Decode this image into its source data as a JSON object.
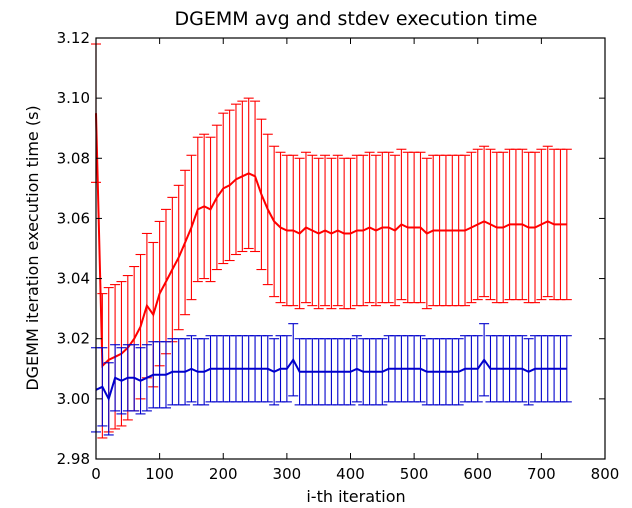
{
  "chart_data": {
    "type": "line",
    "title": "DGEMM  avg and stdev execution time",
    "xlabel": "i-th iteration",
    "ylabel": "DGEMM iteration execution time (s)",
    "xlim": [
      0,
      800
    ],
    "ylim": [
      2.98,
      3.12
    ],
    "x_ticks": [
      "0",
      "100",
      "200",
      "300",
      "400",
      "500",
      "600",
      "700",
      "800"
    ],
    "y_ticks": [
      "2.98",
      "3.00",
      "3.02",
      "3.04",
      "3.06",
      "3.08",
      "3.10",
      "3.12"
    ],
    "grid": false,
    "legend": "none",
    "error_bars": true,
    "series": [
      {
        "color": "#ff0000",
        "x": [
          0,
          10,
          20,
          30,
          40,
          50,
          60,
          70,
          80,
          90,
          100,
          110,
          120,
          130,
          140,
          150,
          160,
          170,
          180,
          190,
          200,
          210,
          220,
          230,
          240,
          250,
          260,
          270,
          280,
          290,
          300,
          310,
          320,
          330,
          340,
          350,
          360,
          370,
          380,
          390,
          400,
          410,
          420,
          430,
          440,
          450,
          460,
          470,
          480,
          490,
          500,
          510,
          520,
          530,
          540,
          550,
          560,
          570,
          580,
          590,
          600,
          610,
          620,
          630,
          640,
          650,
          660,
          670,
          680,
          690,
          700,
          710,
          720,
          730,
          740
        ],
        "mean": [
          3.095,
          3.011,
          3.013,
          3.014,
          3.015,
          3.017,
          3.02,
          3.024,
          3.031,
          3.028,
          3.035,
          3.039,
          3.043,
          3.047,
          3.052,
          3.057,
          3.063,
          3.064,
          3.063,
          3.067,
          3.07,
          3.071,
          3.073,
          3.074,
          3.075,
          3.074,
          3.068,
          3.063,
          3.059,
          3.057,
          3.056,
          3.056,
          3.055,
          3.057,
          3.056,
          3.055,
          3.056,
          3.055,
          3.056,
          3.055,
          3.055,
          3.056,
          3.056,
          3.057,
          3.056,
          3.057,
          3.057,
          3.056,
          3.058,
          3.057,
          3.057,
          3.057,
          3.055,
          3.056,
          3.056,
          3.056,
          3.056,
          3.056,
          3.056,
          3.057,
          3.058,
          3.059,
          3.058,
          3.057,
          3.057,
          3.058,
          3.058,
          3.058,
          3.057,
          3.057,
          3.058,
          3.059,
          3.058,
          3.058,
          3.058
        ],
        "stdev": [
          0.023,
          0.024,
          0.024,
          0.024,
          0.024,
          0.024,
          0.024,
          0.024,
          0.024,
          0.024,
          0.024,
          0.024,
          0.024,
          0.024,
          0.024,
          0.024,
          0.024,
          0.024,
          0.024,
          0.024,
          0.025,
          0.025,
          0.025,
          0.025,
          0.025,
          0.025,
          0.025,
          0.025,
          0.025,
          0.025,
          0.025,
          0.025,
          0.025,
          0.025,
          0.025,
          0.025,
          0.025,
          0.025,
          0.025,
          0.025,
          0.025,
          0.025,
          0.025,
          0.025,
          0.025,
          0.025,
          0.025,
          0.025,
          0.025,
          0.025,
          0.025,
          0.025,
          0.025,
          0.025,
          0.025,
          0.025,
          0.025,
          0.025,
          0.025,
          0.025,
          0.025,
          0.025,
          0.025,
          0.025,
          0.025,
          0.025,
          0.025,
          0.025,
          0.025,
          0.025,
          0.025,
          0.025,
          0.025,
          0.025,
          0.025
        ]
      },
      {
        "color": "#0000cc",
        "x": [
          0,
          10,
          20,
          30,
          40,
          50,
          60,
          70,
          80,
          90,
          100,
          110,
          120,
          130,
          140,
          150,
          160,
          170,
          180,
          190,
          200,
          210,
          220,
          230,
          240,
          250,
          260,
          270,
          280,
          290,
          300,
          310,
          320,
          330,
          340,
          350,
          360,
          370,
          380,
          390,
          400,
          410,
          420,
          430,
          440,
          450,
          460,
          470,
          480,
          490,
          500,
          510,
          520,
          530,
          540,
          550,
          560,
          570,
          580,
          590,
          600,
          610,
          620,
          630,
          640,
          650,
          660,
          670,
          680,
          690,
          700,
          710,
          720,
          730,
          740
        ],
        "mean": [
          3.003,
          3.004,
          3.0,
          3.007,
          3.006,
          3.007,
          3.007,
          3.006,
          3.007,
          3.008,
          3.008,
          3.008,
          3.009,
          3.009,
          3.009,
          3.01,
          3.009,
          3.009,
          3.01,
          3.01,
          3.01,
          3.01,
          3.01,
          3.01,
          3.01,
          3.01,
          3.01,
          3.01,
          3.009,
          3.01,
          3.01,
          3.013,
          3.009,
          3.009,
          3.009,
          3.009,
          3.009,
          3.009,
          3.009,
          3.009,
          3.009,
          3.01,
          3.009,
          3.009,
          3.009,
          3.009,
          3.01,
          3.01,
          3.01,
          3.01,
          3.01,
          3.01,
          3.009,
          3.009,
          3.009,
          3.009,
          3.009,
          3.009,
          3.01,
          3.01,
          3.01,
          3.013,
          3.01,
          3.01,
          3.01,
          3.01,
          3.01,
          3.01,
          3.009,
          3.01,
          3.01,
          3.01,
          3.01,
          3.01,
          3.01
        ],
        "stdev": [
          0.014,
          0.013,
          0.012,
          0.011,
          0.011,
          0.011,
          0.011,
          0.011,
          0.011,
          0.011,
          0.011,
          0.011,
          0.011,
          0.011,
          0.011,
          0.011,
          0.011,
          0.011,
          0.011,
          0.011,
          0.011,
          0.011,
          0.011,
          0.011,
          0.011,
          0.011,
          0.011,
          0.011,
          0.011,
          0.011,
          0.011,
          0.012,
          0.011,
          0.011,
          0.011,
          0.011,
          0.011,
          0.011,
          0.011,
          0.011,
          0.011,
          0.011,
          0.011,
          0.011,
          0.011,
          0.011,
          0.011,
          0.011,
          0.011,
          0.011,
          0.011,
          0.011,
          0.011,
          0.011,
          0.011,
          0.011,
          0.011,
          0.011,
          0.011,
          0.011,
          0.011,
          0.012,
          0.011,
          0.011,
          0.011,
          0.011,
          0.011,
          0.011,
          0.011,
          0.011,
          0.011,
          0.011,
          0.011,
          0.011,
          0.011
        ]
      }
    ]
  }
}
